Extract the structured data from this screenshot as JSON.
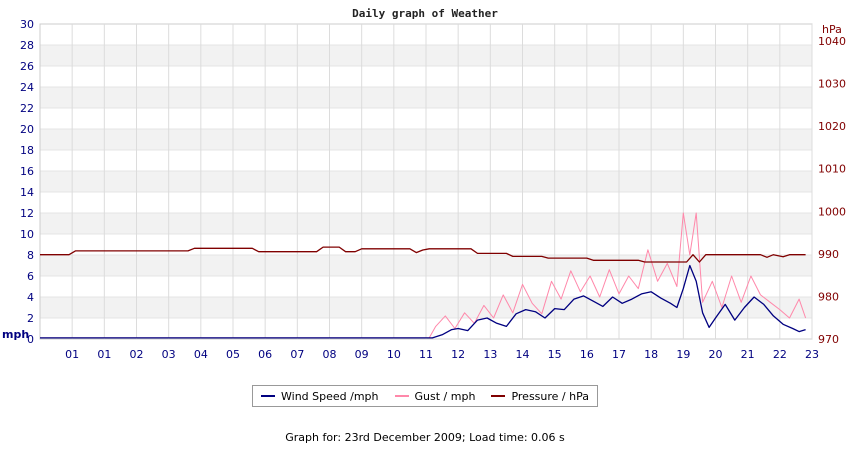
{
  "chart_data": {
    "type": "line",
    "title": "Daily graph of Weather",
    "y_left": {
      "label": "mph",
      "range": [
        0,
        30
      ],
      "ticks": [
        "0",
        "2",
        "4",
        "6",
        "8",
        "10",
        "12",
        "14",
        "16",
        "18",
        "20",
        "22",
        "24",
        "26",
        "28",
        "30"
      ]
    },
    "y_right": {
      "label": "hPa",
      "range": [
        970,
        1044
      ],
      "ticks": [
        "970",
        "980",
        "990",
        "1000",
        "1010",
        "1020",
        "1030",
        "1040"
      ]
    },
    "x": {
      "range": [
        0,
        24
      ],
      "ticks": [
        "01",
        "01",
        "02",
        "03",
        "04",
        "05",
        "06",
        "07",
        "08",
        "09",
        "10",
        "11",
        "12",
        "13",
        "14",
        "15",
        "16",
        "17",
        "18",
        "19",
        "20",
        "21",
        "22",
        "23"
      ]
    },
    "grid": true,
    "legend_position": "bottom",
    "series": [
      {
        "name": "Wind Speed /mph",
        "axis": "left",
        "color": "#000080",
        "points": [
          [
            0,
            0.1
          ],
          [
            12.2,
            0.1
          ],
          [
            12.5,
            0.4
          ],
          [
            12.8,
            0.9
          ],
          [
            13.0,
            1.0
          ],
          [
            13.3,
            0.8
          ],
          [
            13.6,
            1.8
          ],
          [
            13.9,
            2.0
          ],
          [
            14.2,
            1.5
          ],
          [
            14.5,
            1.2
          ],
          [
            14.8,
            2.4
          ],
          [
            15.1,
            2.8
          ],
          [
            15.4,
            2.6
          ],
          [
            15.7,
            2.0
          ],
          [
            16.0,
            2.9
          ],
          [
            16.3,
            2.8
          ],
          [
            16.6,
            3.8
          ],
          [
            16.9,
            4.1
          ],
          [
            17.2,
            3.6
          ],
          [
            17.5,
            3.1
          ],
          [
            17.8,
            4.0
          ],
          [
            18.1,
            3.4
          ],
          [
            18.4,
            3.8
          ],
          [
            18.7,
            4.3
          ],
          [
            19.0,
            4.5
          ],
          [
            19.3,
            3.9
          ],
          [
            19.6,
            3.4
          ],
          [
            19.8,
            3.0
          ],
          [
            20.0,
            4.8
          ],
          [
            20.2,
            7.0
          ],
          [
            20.4,
            5.5
          ],
          [
            20.6,
            2.5
          ],
          [
            20.8,
            1.1
          ],
          [
            21.0,
            2.0
          ],
          [
            21.3,
            3.3
          ],
          [
            21.6,
            1.8
          ],
          [
            21.9,
            3.0
          ],
          [
            22.2,
            4.0
          ],
          [
            22.5,
            3.3
          ],
          [
            22.8,
            2.2
          ],
          [
            23.1,
            1.4
          ],
          [
            23.4,
            1.0
          ],
          [
            23.6,
            0.7
          ],
          [
            23.8,
            0.9
          ]
        ]
      },
      {
        "name": "Gust / mph",
        "axis": "left",
        "color": "#ff88aa",
        "points": [
          [
            0,
            0.1
          ],
          [
            12.1,
            0.1
          ],
          [
            12.3,
            1.2
          ],
          [
            12.6,
            2.2
          ],
          [
            12.9,
            1.0
          ],
          [
            13.2,
            2.5
          ],
          [
            13.5,
            1.5
          ],
          [
            13.8,
            3.2
          ],
          [
            14.1,
            2.0
          ],
          [
            14.4,
            4.2
          ],
          [
            14.7,
            2.5
          ],
          [
            15.0,
            5.2
          ],
          [
            15.3,
            3.4
          ],
          [
            15.6,
            2.4
          ],
          [
            15.9,
            5.5
          ],
          [
            16.2,
            3.8
          ],
          [
            16.5,
            6.5
          ],
          [
            16.8,
            4.5
          ],
          [
            17.1,
            6.0
          ],
          [
            17.4,
            4.0
          ],
          [
            17.7,
            6.6
          ],
          [
            18.0,
            4.3
          ],
          [
            18.3,
            6.0
          ],
          [
            18.6,
            4.8
          ],
          [
            18.9,
            8.5
          ],
          [
            19.2,
            5.5
          ],
          [
            19.5,
            7.2
          ],
          [
            19.8,
            5.0
          ],
          [
            20.0,
            12.0
          ],
          [
            20.2,
            8.0
          ],
          [
            20.4,
            12.0
          ],
          [
            20.6,
            3.5
          ],
          [
            20.9,
            5.5
          ],
          [
            21.2,
            3.0
          ],
          [
            21.5,
            6.0
          ],
          [
            21.8,
            3.5
          ],
          [
            22.1,
            6.0
          ],
          [
            22.4,
            4.2
          ],
          [
            22.7,
            3.5
          ],
          [
            23.0,
            2.8
          ],
          [
            23.3,
            2.0
          ],
          [
            23.6,
            3.8
          ],
          [
            23.8,
            2.0
          ]
        ]
      },
      {
        "name": "Pressure / hPa",
        "axis": "right",
        "color": "#800000",
        "points": [
          [
            0,
            989.8
          ],
          [
            0.9,
            989.8
          ],
          [
            1.1,
            990.7
          ],
          [
            4.6,
            990.7
          ],
          [
            4.8,
            991.3
          ],
          [
            6.6,
            991.3
          ],
          [
            6.8,
            990.5
          ],
          [
            8.6,
            990.5
          ],
          [
            8.8,
            991.6
          ],
          [
            9.3,
            991.6
          ],
          [
            9.5,
            990.5
          ],
          [
            9.8,
            990.5
          ],
          [
            10.0,
            991.2
          ],
          [
            11.5,
            991.2
          ],
          [
            11.7,
            990.3
          ],
          [
            11.9,
            990.9
          ],
          [
            12.1,
            991.2
          ],
          [
            13.4,
            991.2
          ],
          [
            13.6,
            990.1
          ],
          [
            14.5,
            990.1
          ],
          [
            14.7,
            989.4
          ],
          [
            15.6,
            989.4
          ],
          [
            15.8,
            989.0
          ],
          [
            17.0,
            989.0
          ],
          [
            17.2,
            988.5
          ],
          [
            18.6,
            988.5
          ],
          [
            18.8,
            988.1
          ],
          [
            20.1,
            988.1
          ],
          [
            20.3,
            989.8
          ],
          [
            20.5,
            988.1
          ],
          [
            20.7,
            989.8
          ],
          [
            22.4,
            989.8
          ],
          [
            22.6,
            989.2
          ],
          [
            22.8,
            989.8
          ],
          [
            23.1,
            989.3
          ],
          [
            23.3,
            989.8
          ],
          [
            23.8,
            989.8
          ]
        ]
      }
    ]
  },
  "legend": {
    "wind": "Wind Speed /mph",
    "gust": "Gust / mph",
    "pressure": "Pressure / hPa"
  },
  "footer": "Graph for: 23rd December 2009; Load time: 0.06 s"
}
